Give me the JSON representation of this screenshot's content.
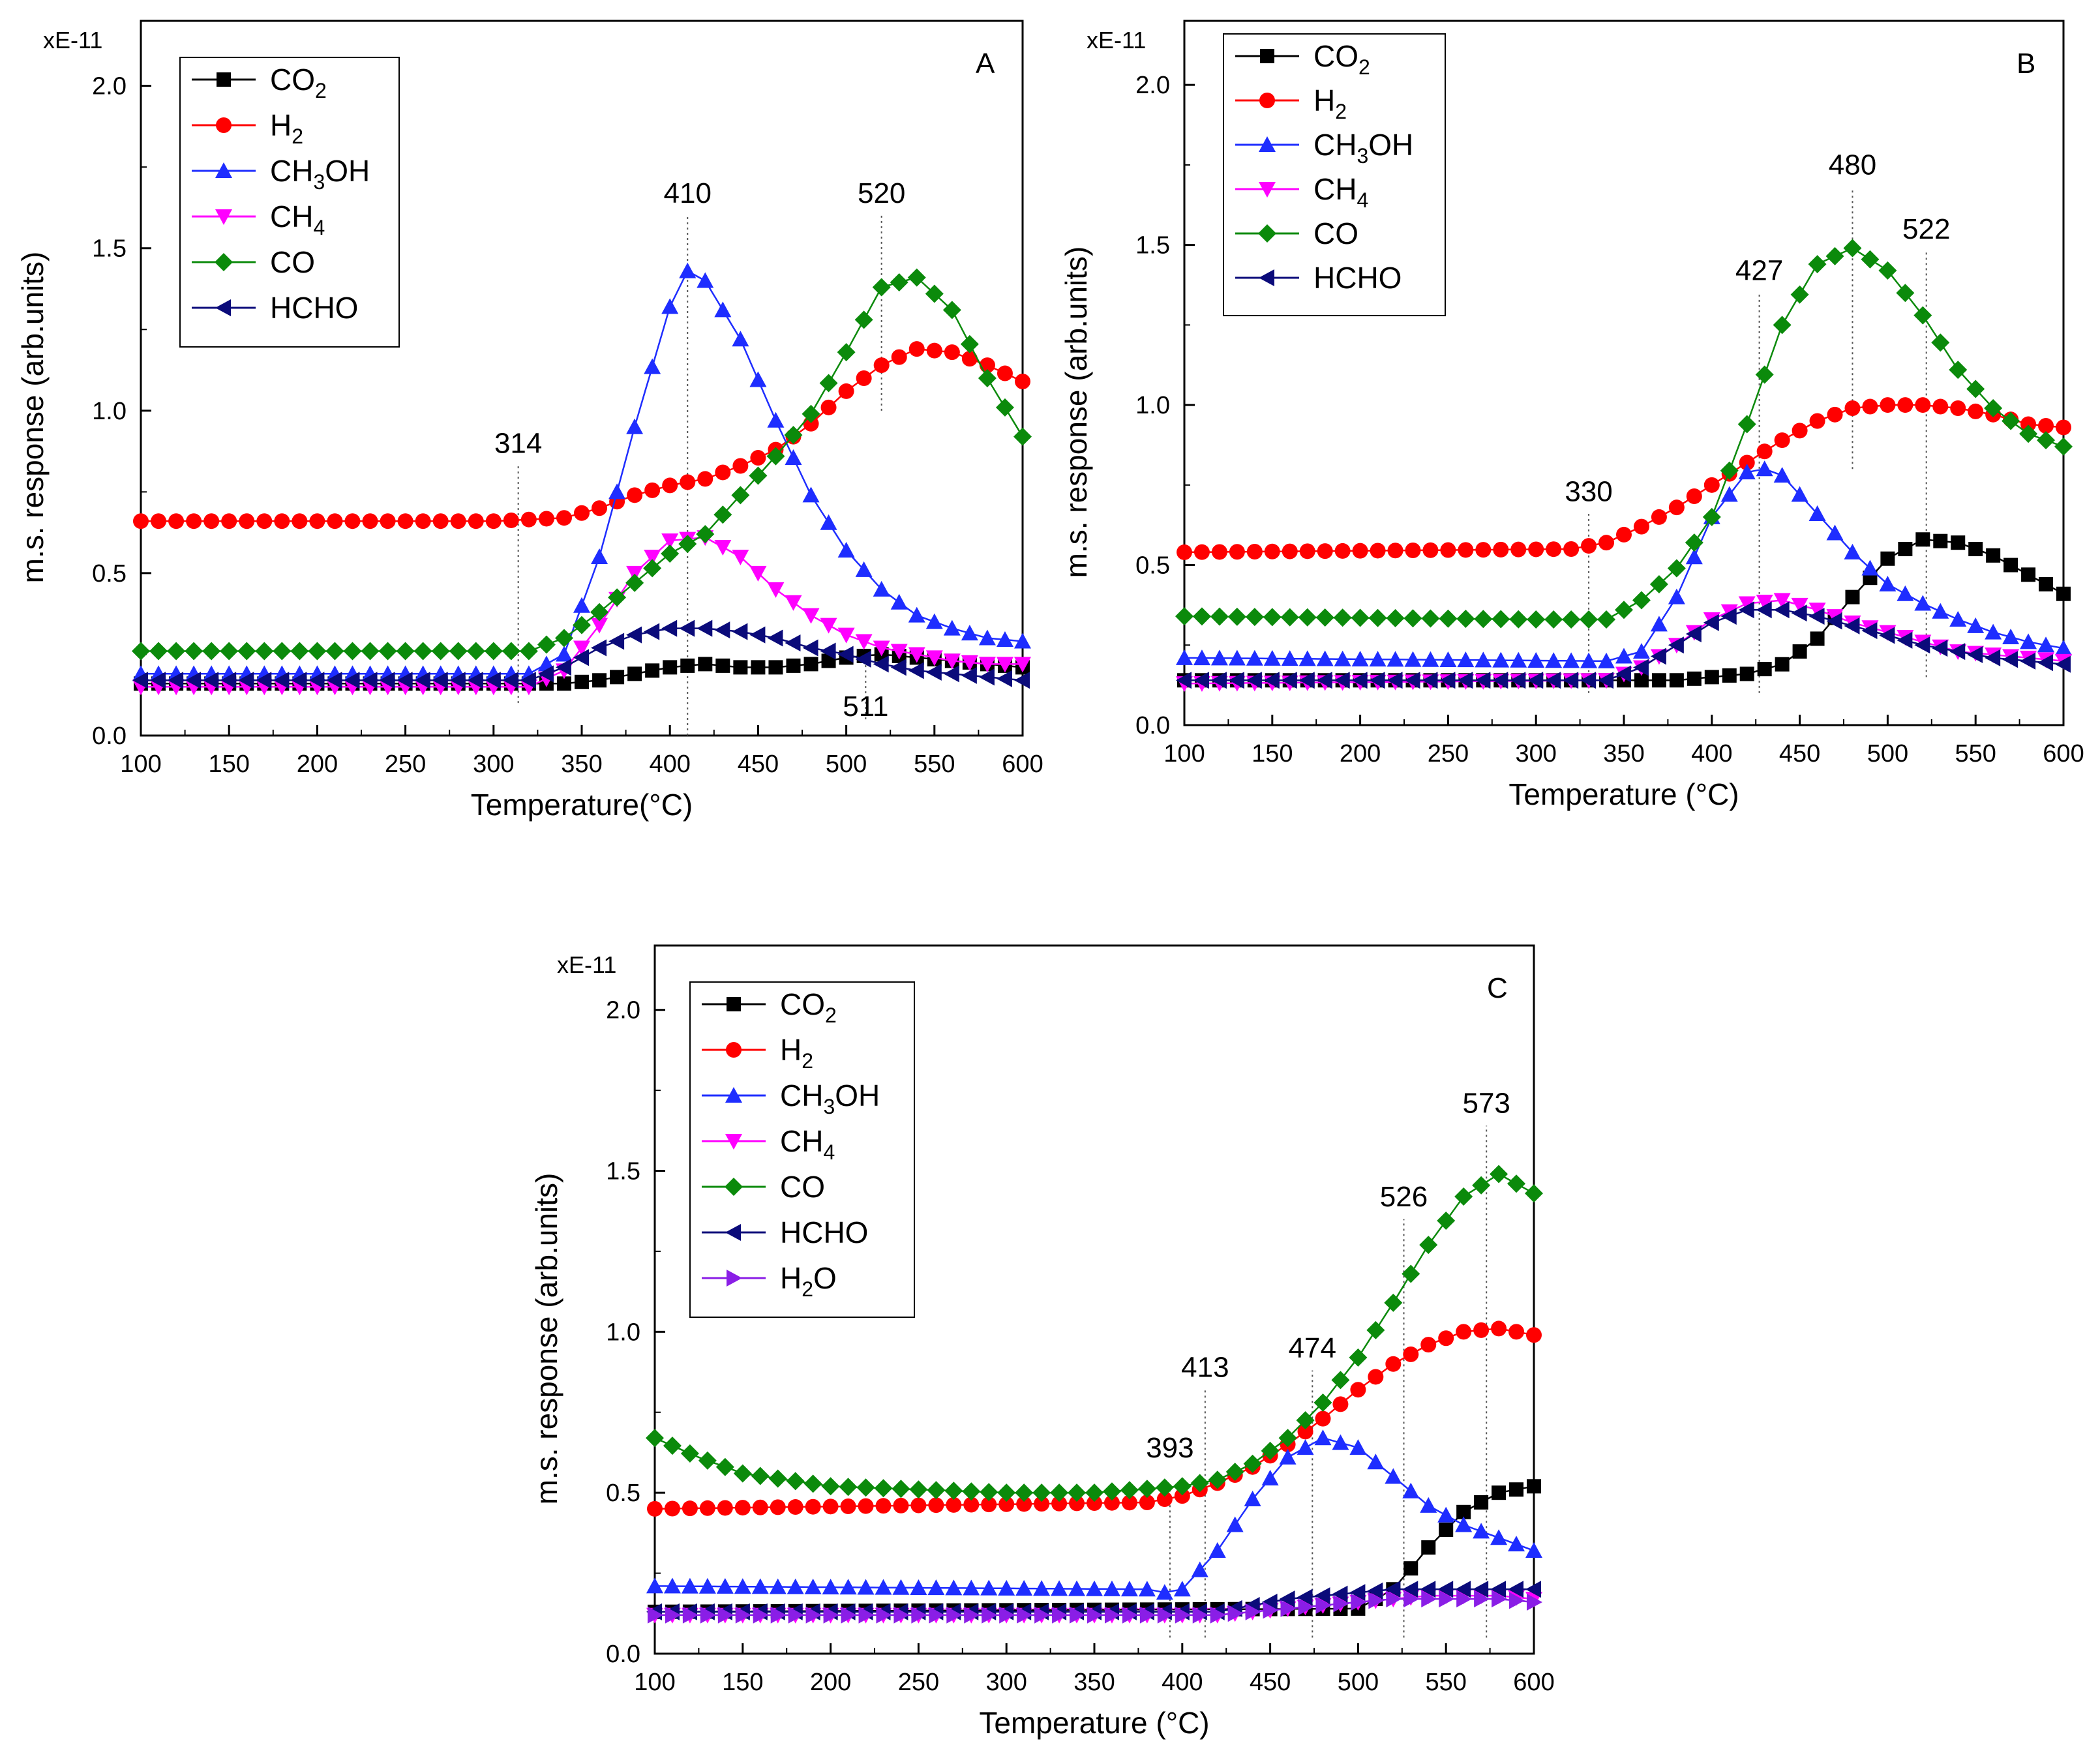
{
  "colors": {
    "CO2": "#000000",
    "H2": "#ff0000",
    "CH3OH": "#1e2dff",
    "CH4": "#ff00ff",
    "CO": "#0b8a0b",
    "HCHO": "#0b0b7a",
    "H2O": "#8a1ee6"
  },
  "chart_data": [
    {
      "type": "line",
      "panel_label": "A",
      "multiplier": "xE-11",
      "xlabel": "Temperature(°C)",
      "ylabel": "m.s. response (arb.units)",
      "xlim": [
        100,
        600
      ],
      "ylim": [
        0,
        2.2
      ],
      "xticks": [
        "100",
        "150",
        "200",
        "250",
        "300",
        "350",
        "400",
        "450",
        "500",
        "550",
        "600"
      ],
      "yticks": [
        "0.0",
        "0.5",
        "1.0",
        "1.5",
        "2.0"
      ],
      "legend_position": "top-left",
      "legend": [
        {
          "key": "CO2",
          "label": "CO",
          "sub": "2",
          "marker": "square"
        },
        {
          "key": "H2",
          "label": "H",
          "sub": "2",
          "marker": "circle"
        },
        {
          "key": "CH3OH",
          "label": "CH",
          "sub": "3",
          "post": "OH",
          "marker": "triangle-up"
        },
        {
          "key": "CH4",
          "label": "CH",
          "sub": "4",
          "marker": "triangle-down"
        },
        {
          "key": "CO",
          "label": "CO",
          "marker": "diamond"
        },
        {
          "key": "HCHO",
          "label": "HCHO",
          "marker": "triangle-left"
        }
      ],
      "series": [
        {
          "key": "CO2",
          "marker": "square",
          "x": [
            100,
            300,
            320,
            340,
            360,
            380,
            400,
            420,
            440,
            460,
            480,
            500,
            520,
            540,
            560,
            580,
            600
          ],
          "y": [
            0.16,
            0.16,
            0.16,
            0.16,
            0.17,
            0.19,
            0.21,
            0.22,
            0.21,
            0.21,
            0.22,
            0.24,
            0.25,
            0.24,
            0.23,
            0.22,
            0.21
          ]
        },
        {
          "key": "H2",
          "marker": "circle",
          "x": [
            100,
            300,
            340,
            360,
            380,
            400,
            420,
            440,
            460,
            480,
            500,
            520,
            540,
            560,
            580,
            600
          ],
          "y": [
            0.66,
            0.66,
            0.67,
            0.7,
            0.74,
            0.77,
            0.79,
            0.83,
            0.88,
            0.96,
            1.06,
            1.14,
            1.19,
            1.18,
            1.14,
            1.09
          ]
        },
        {
          "key": "CH3OH",
          "marker": "triangle-up",
          "x": [
            100,
            320,
            340,
            360,
            380,
            400,
            410,
            420,
            440,
            460,
            480,
            500,
            520,
            540,
            560,
            580,
            600
          ],
          "y": [
            0.19,
            0.19,
            0.25,
            0.55,
            0.95,
            1.32,
            1.43,
            1.4,
            1.22,
            0.97,
            0.74,
            0.57,
            0.45,
            0.37,
            0.33,
            0.3,
            0.29
          ]
        },
        {
          "key": "CH4",
          "marker": "triangle-down",
          "x": [
            100,
            320,
            340,
            360,
            380,
            400,
            420,
            440,
            460,
            480,
            500,
            520,
            540,
            560,
            580,
            600
          ],
          "y": [
            0.15,
            0.15,
            0.2,
            0.34,
            0.5,
            0.6,
            0.61,
            0.55,
            0.45,
            0.37,
            0.31,
            0.27,
            0.25,
            0.23,
            0.22,
            0.22
          ]
        },
        {
          "key": "CO",
          "marker": "diamond",
          "x": [
            100,
            320,
            340,
            360,
            380,
            400,
            420,
            440,
            460,
            480,
            500,
            520,
            540,
            560,
            580,
            600
          ],
          "y": [
            0.26,
            0.26,
            0.3,
            0.38,
            0.47,
            0.56,
            0.62,
            0.74,
            0.86,
            0.99,
            1.18,
            1.38,
            1.41,
            1.31,
            1.1,
            0.92
          ]
        },
        {
          "key": "HCHO",
          "marker": "triangle-left",
          "x": [
            100,
            320,
            340,
            360,
            380,
            400,
            420,
            440,
            460,
            480,
            500,
            520,
            540,
            560,
            580,
            600
          ],
          "y": [
            0.17,
            0.17,
            0.21,
            0.27,
            0.31,
            0.33,
            0.33,
            0.32,
            0.3,
            0.27,
            0.25,
            0.22,
            0.2,
            0.19,
            0.18,
            0.17
          ]
        }
      ],
      "annotations": [
        {
          "label": "314",
          "x": 314,
          "line_from": 0.1,
          "line_to": 0.83,
          "text_y": 0.87
        },
        {
          "label": "410",
          "x": 410,
          "line_from": 0.0,
          "line_to": 1.6,
          "text_y": 1.64
        },
        {
          "label": "520",
          "x": 520,
          "line_from": 1.0,
          "line_to": 1.6,
          "text_y": 1.64
        },
        {
          "label": "511",
          "x": 511,
          "line_from": 0.05,
          "line_to": 0.28,
          "text_y": 0.06
        }
      ]
    },
    {
      "type": "line",
      "panel_label": "B",
      "multiplier": "xE-11",
      "xlabel": "Temperature (°C)",
      "ylabel": "m.s. response (arb.units)",
      "xlim": [
        100,
        600
      ],
      "ylim": [
        0,
        2.2
      ],
      "xticks": [
        "100",
        "150",
        "200",
        "250",
        "300",
        "350",
        "400",
        "450",
        "500",
        "550",
        "600"
      ],
      "yticks": [
        "0.0",
        "0.5",
        "1.0",
        "1.5",
        "2.0"
      ],
      "legend_position": "top-left",
      "legend": [
        {
          "key": "CO2",
          "label": "CO",
          "sub": "2",
          "marker": "square"
        },
        {
          "key": "H2",
          "label": "H",
          "sub": "2",
          "marker": "circle"
        },
        {
          "key": "CH3OH",
          "label": "CH",
          "sub": "3",
          "post": "OH",
          "marker": "triangle-up"
        },
        {
          "key": "CH4",
          "label": "CH",
          "sub": "4",
          "marker": "triangle-down"
        },
        {
          "key": "CO",
          "label": "CO",
          "marker": "diamond"
        },
        {
          "key": "HCHO",
          "label": "HCHO",
          "marker": "triangle-left"
        }
      ],
      "series": [
        {
          "key": "CO2",
          "marker": "square",
          "x": [
            100,
            380,
            400,
            420,
            440,
            460,
            480,
            500,
            520,
            540,
            560,
            580,
            600
          ],
          "y": [
            0.14,
            0.14,
            0.15,
            0.16,
            0.19,
            0.27,
            0.4,
            0.52,
            0.58,
            0.57,
            0.53,
            0.47,
            0.41
          ]
        },
        {
          "key": "H2",
          "marker": "circle",
          "x": [
            100,
            320,
            340,
            360,
            380,
            400,
            420,
            440,
            460,
            480,
            500,
            520,
            540,
            560,
            580,
            600
          ],
          "y": [
            0.54,
            0.55,
            0.57,
            0.62,
            0.68,
            0.75,
            0.82,
            0.89,
            0.95,
            0.99,
            1.0,
            1.0,
            0.99,
            0.97,
            0.94,
            0.93
          ]
        },
        {
          "key": "CH3OH",
          "marker": "triangle-up",
          "x": [
            100,
            340,
            360,
            380,
            400,
            420,
            430,
            440,
            460,
            480,
            500,
            520,
            540,
            560,
            580,
            600
          ],
          "y": [
            0.21,
            0.2,
            0.23,
            0.4,
            0.65,
            0.79,
            0.8,
            0.78,
            0.66,
            0.54,
            0.44,
            0.38,
            0.33,
            0.29,
            0.26,
            0.24
          ]
        },
        {
          "key": "CH4",
          "marker": "triangle-down",
          "x": [
            100,
            340,
            360,
            380,
            400,
            420,
            440,
            460,
            480,
            500,
            520,
            540,
            560,
            580,
            600
          ],
          "y": [
            0.13,
            0.14,
            0.18,
            0.25,
            0.33,
            0.38,
            0.39,
            0.36,
            0.32,
            0.29,
            0.26,
            0.23,
            0.22,
            0.21,
            0.2
          ]
        },
        {
          "key": "CO",
          "marker": "diamond",
          "x": [
            100,
            300,
            340,
            360,
            380,
            400,
            420,
            440,
            460,
            480,
            500,
            520,
            540,
            560,
            580,
            600
          ],
          "y": [
            0.34,
            0.33,
            0.33,
            0.39,
            0.49,
            0.65,
            0.94,
            1.25,
            1.44,
            1.49,
            1.42,
            1.28,
            1.11,
            0.99,
            0.91,
            0.87
          ]
        },
        {
          "key": "HCHO",
          "marker": "triangle-left",
          "x": [
            100,
            340,
            360,
            380,
            400,
            420,
            440,
            460,
            480,
            500,
            520,
            540,
            560,
            580,
            600
          ],
          "y": [
            0.14,
            0.14,
            0.18,
            0.25,
            0.32,
            0.36,
            0.36,
            0.34,
            0.31,
            0.28,
            0.25,
            0.23,
            0.21,
            0.2,
            0.19
          ]
        }
      ],
      "annotations": [
        {
          "label": "330",
          "x": 330,
          "line_from": 0.1,
          "line_to": 0.66,
          "text_y": 0.7
        },
        {
          "label": "427",
          "x": 427,
          "line_from": 0.1,
          "line_to": 1.35,
          "text_y": 1.39
        },
        {
          "label": "480",
          "x": 480,
          "line_from": 0.8,
          "line_to": 1.68,
          "text_y": 1.72
        },
        {
          "label": "522",
          "x": 522,
          "line_from": 0.15,
          "line_to": 1.48,
          "text_y": 1.52
        }
      ]
    },
    {
      "type": "line",
      "panel_label": "C",
      "multiplier": "xE-11",
      "xlabel": "Temperature (°C)",
      "ylabel": "m.s. response (arb.units)",
      "xlim": [
        100,
        600
      ],
      "ylim": [
        0,
        2.2
      ],
      "xticks": [
        "100",
        "150",
        "200",
        "250",
        "300",
        "350",
        "400",
        "450",
        "500",
        "550",
        "600"
      ],
      "yticks": [
        "0.0",
        "0.5",
        "1.0",
        "1.5",
        "2.0"
      ],
      "legend_position": "top-left",
      "legend": [
        {
          "key": "CO2",
          "label": "CO",
          "sub": "2",
          "marker": "square"
        },
        {
          "key": "H2",
          "label": "H",
          "sub": "2",
          "marker": "circle"
        },
        {
          "key": "CH3OH",
          "label": "CH",
          "sub": "3",
          "post": "OH",
          "marker": "triangle-up"
        },
        {
          "key": "CH4",
          "label": "CH",
          "sub": "4",
          "marker": "triangle-down"
        },
        {
          "key": "CO",
          "label": "CO",
          "marker": "diamond"
        },
        {
          "key": "HCHO",
          "label": "HCHO",
          "marker": "triangle-left"
        },
        {
          "key": "H2O",
          "label": "H",
          "sub": "2",
          "post": "O",
          "marker": "triangle-right"
        }
      ],
      "series": [
        {
          "key": "CO2",
          "marker": "square",
          "x": [
            100,
            500,
            520,
            540,
            560,
            580,
            600
          ],
          "y": [
            0.13,
            0.14,
            0.2,
            0.33,
            0.44,
            0.5,
            0.52
          ]
        },
        {
          "key": "H2",
          "marker": "circle",
          "x": [
            100,
            380,
            400,
            420,
            440,
            460,
            480,
            500,
            520,
            540,
            560,
            580,
            600
          ],
          "y": [
            0.45,
            0.47,
            0.49,
            0.53,
            0.58,
            0.65,
            0.73,
            0.82,
            0.9,
            0.96,
            1.0,
            1.01,
            0.99
          ]
        },
        {
          "key": "CH3OH",
          "marker": "triangle-up",
          "x": [
            100,
            380,
            390,
            400,
            420,
            440,
            460,
            480,
            500,
            520,
            540,
            560,
            580,
            600
          ],
          "y": [
            0.21,
            0.2,
            0.19,
            0.2,
            0.32,
            0.48,
            0.61,
            0.67,
            0.64,
            0.55,
            0.46,
            0.4,
            0.36,
            0.32
          ]
        },
        {
          "key": "CH4",
          "marker": "triangle-down",
          "x": [
            100,
            420,
            440,
            460,
            480,
            500,
            520,
            540,
            560,
            580,
            600
          ],
          "y": [
            0.12,
            0.12,
            0.13,
            0.14,
            0.15,
            0.16,
            0.17,
            0.18,
            0.18,
            0.18,
            0.17
          ]
        },
        {
          "key": "CO",
          "marker": "diamond",
          "x": [
            100,
            125,
            150,
            200,
            250,
            300,
            350,
            400,
            420,
            440,
            460,
            480,
            500,
            520,
            540,
            560,
            580,
            600
          ],
          "y": [
            0.67,
            0.61,
            0.56,
            0.52,
            0.51,
            0.5,
            0.5,
            0.52,
            0.54,
            0.59,
            0.67,
            0.78,
            0.92,
            1.09,
            1.27,
            1.42,
            1.49,
            1.43
          ]
        },
        {
          "key": "HCHO",
          "marker": "triangle-left",
          "x": [
            100,
            420,
            440,
            460,
            480,
            500,
            520,
            540,
            560,
            580,
            600
          ],
          "y": [
            0.13,
            0.13,
            0.15,
            0.17,
            0.18,
            0.19,
            0.2,
            0.2,
            0.2,
            0.2,
            0.2
          ]
        },
        {
          "key": "H2O",
          "marker": "triangle-right",
          "x": [
            100,
            420,
            440,
            460,
            480,
            500,
            520,
            540,
            560,
            580,
            600
          ],
          "y": [
            0.12,
            0.12,
            0.13,
            0.14,
            0.15,
            0.16,
            0.17,
            0.17,
            0.17,
            0.17,
            0.16
          ]
        }
      ],
      "annotations": [
        {
          "label": "393",
          "x": 393,
          "line_from": 0.05,
          "line_to": 0.52,
          "text_y": 0.61
        },
        {
          "label": "413",
          "x": 413,
          "line_from": 0.05,
          "line_to": 0.82,
          "text_y": 0.86
        },
        {
          "label": "474",
          "x": 474,
          "line_from": 0.05,
          "line_to": 0.88,
          "text_y": 0.92
        },
        {
          "label": "526",
          "x": 526,
          "line_from": 0.05,
          "line_to": 1.35,
          "text_y": 1.39
        },
        {
          "label": "573",
          "x": 573,
          "line_from": 0.05,
          "line_to": 1.64,
          "text_y": 1.68
        }
      ]
    }
  ]
}
